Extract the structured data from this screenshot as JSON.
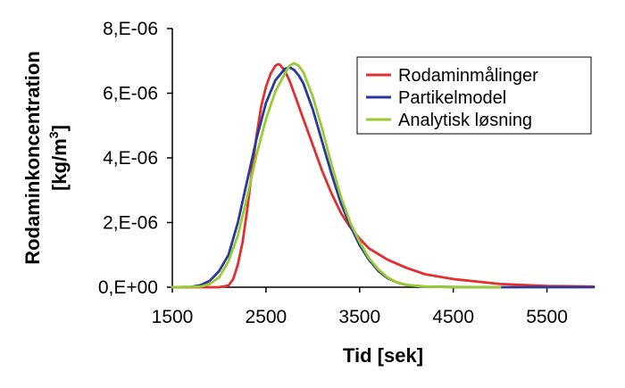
{
  "chart_data": {
    "type": "line",
    "xlabel": "Tid [sek]",
    "ylabel": "Rodaminkoncentration",
    "ylabel_unit": "[kg/m",
    "ylabel_unit_sup": "3",
    "ylabel_unit_close": "]",
    "xlim": [
      1500,
      6000
    ],
    "ylim": [
      0,
      8e-06
    ],
    "x_ticks": [
      1500,
      2500,
      3500,
      4500,
      5500
    ],
    "x_tick_labels": [
      "1500",
      "2500",
      "3500",
      "4500",
      "5500"
    ],
    "y_ticks": [
      0,
      2e-06,
      4e-06,
      6e-06,
      8e-06
    ],
    "y_tick_labels": [
      "0,E+00",
      "2,E-06",
      "4,E-06",
      "6,E-06",
      "8,E-06"
    ],
    "grid": false,
    "legend_position": "top-right",
    "series": [
      {
        "name": "Rodaminmålinger",
        "color": "#e03030",
        "x": [
          1500,
          2000,
          2100,
          2150,
          2200,
          2250,
          2300,
          2350,
          2400,
          2450,
          2500,
          2550,
          2600,
          2630,
          2650,
          2700,
          2750,
          2800,
          2850,
          2900,
          3000,
          3100,
          3200,
          3300,
          3400,
          3500,
          3600,
          3800,
          4000,
          4200,
          4500,
          5000,
          5500,
          6000
        ],
        "y": [
          0,
          0,
          5e-08,
          2.5e-07,
          7e-07,
          1.4e-06,
          2.4e-06,
          3.6e-06,
          4.7e-06,
          5.6e-06,
          6.2e-06,
          6.6e-06,
          6.85e-06,
          6.9e-06,
          6.88e-06,
          6.7e-06,
          6.4e-06,
          6e-06,
          5.6e-06,
          5.2e-06,
          4.4e-06,
          3.6e-06,
          2.9e-06,
          2.3e-06,
          1.85e-06,
          1.5e-06,
          1.2e-06,
          8.5e-07,
          6e-07,
          4e-07,
          2.5e-07,
          1e-07,
          4e-08,
          2e-08
        ]
      },
      {
        "name": "Partikelmodel",
        "color": "#2b3a9a",
        "x": [
          1500,
          1700,
          1800,
          1900,
          2000,
          2100,
          2200,
          2300,
          2400,
          2500,
          2600,
          2700,
          2750,
          2800,
          2850,
          2900,
          3000,
          3100,
          3200,
          3300,
          3400,
          3500,
          3600,
          3700,
          3800,
          3900,
          4000,
          4200,
          4500,
          5000,
          6000
        ],
        "y": [
          0,
          1e-08,
          6e-08,
          2e-07,
          5e-07,
          1e-06,
          2e-06,
          3.3e-06,
          4.6e-06,
          5.7e-06,
          6.4e-06,
          6.75e-06,
          6.8e-06,
          6.72e-06,
          6.55e-06,
          6.3e-06,
          5.5e-06,
          4.5e-06,
          3.5e-06,
          2.6e-06,
          1.9e-06,
          1.3e-06,
          8.5e-07,
          5e-07,
          2.8e-07,
          1.5e-07,
          7e-08,
          2e-08,
          5e-09,
          0,
          0
        ]
      },
      {
        "name": "Analytisk løsning",
        "color": "#99cc33",
        "x": [
          1500,
          1800,
          1900,
          2000,
          2100,
          2200,
          2300,
          2400,
          2500,
          2600,
          2700,
          2750,
          2800,
          2850,
          2900,
          3000,
          3100,
          3200,
          3300,
          3400,
          3500,
          3600,
          3700,
          3800,
          3900,
          4000,
          4200,
          4500,
          5000
        ],
        "y": [
          0,
          2e-08,
          1e-07,
          3e-07,
          8e-07,
          1.6e-06,
          2.8e-06,
          4.1e-06,
          5.2e-06,
          6.05e-06,
          6.6e-06,
          6.85e-06,
          6.93e-06,
          6.85e-06,
          6.65e-06,
          5.9e-06,
          4.9e-06,
          3.8e-06,
          2.8e-06,
          2e-06,
          1.4e-06,
          9e-07,
          5.5e-07,
          3e-07,
          1.5e-07,
          7e-08,
          2e-08,
          3e-09,
          0
        ]
      }
    ]
  }
}
